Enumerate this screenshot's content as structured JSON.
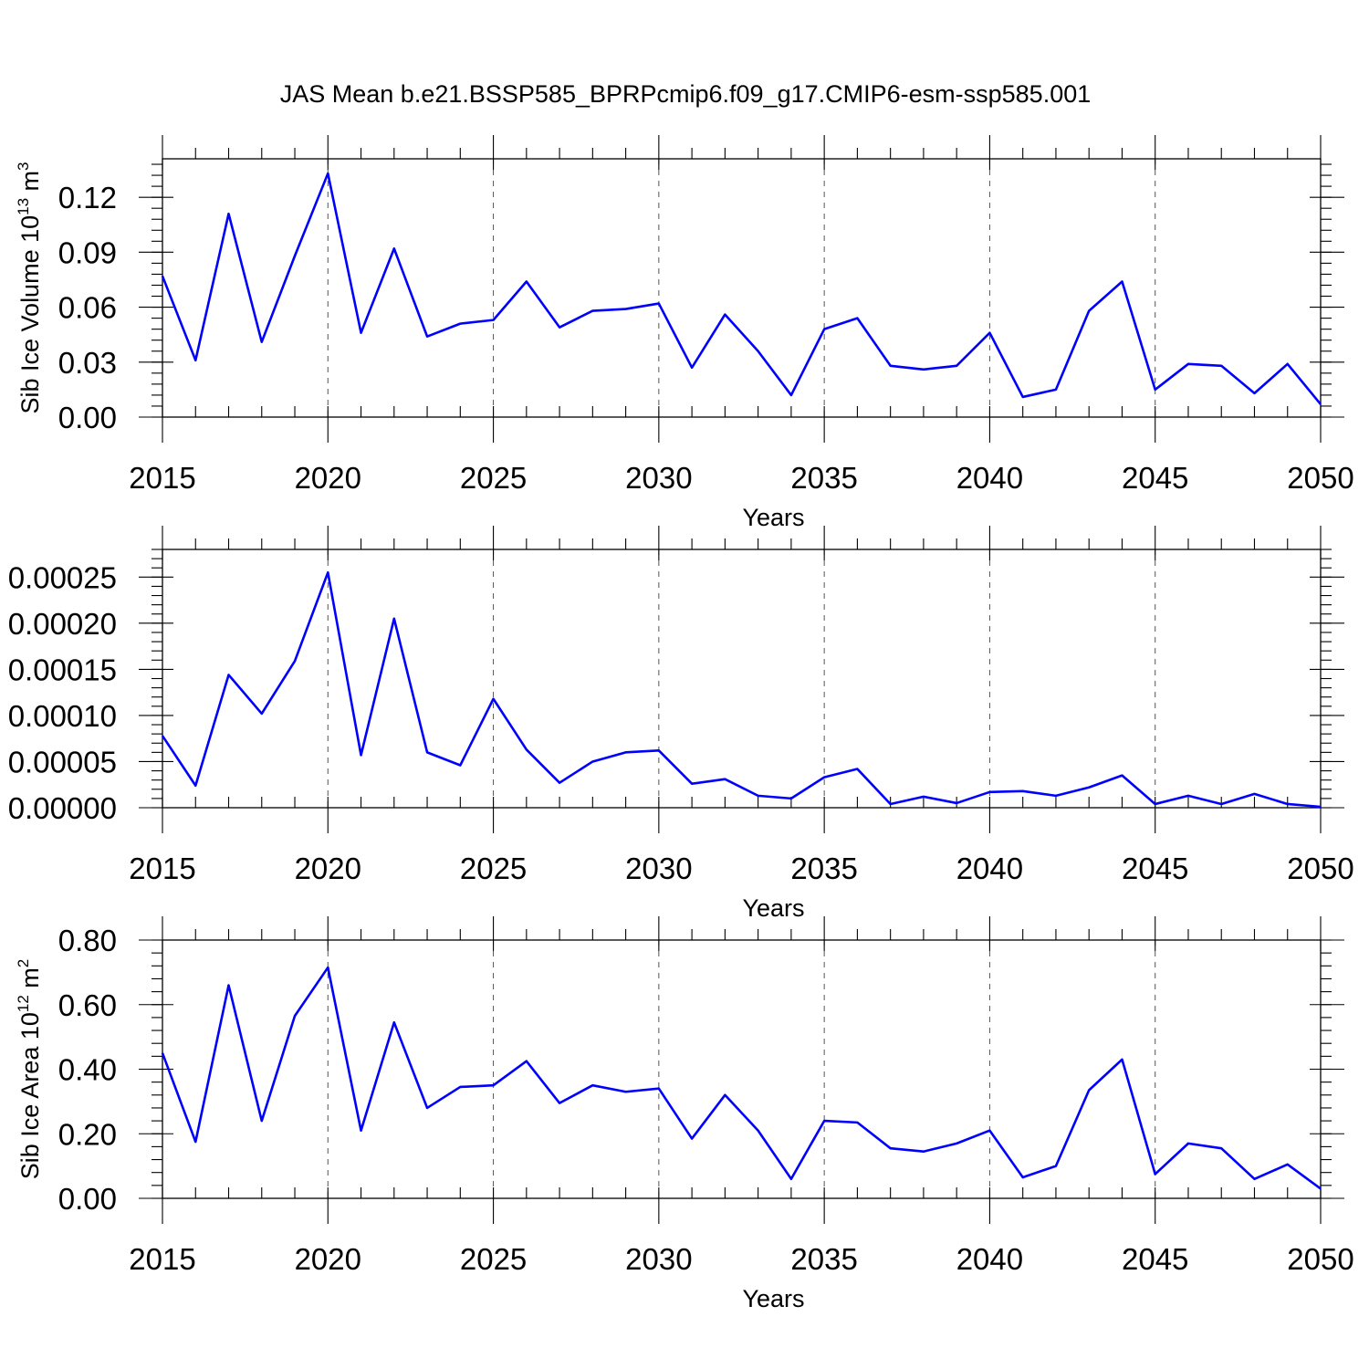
{
  "figure": {
    "title": "JAS Mean b.e21.BSSP585_BPRPcmip6.f09_g17.CMIP6-esm-ssp585.001"
  },
  "chart_data": [
    {
      "type": "line",
      "xlabel": "Years",
      "ylabel": "Sib Ice Volume 10",
      "ylabel_exponent": "13",
      "ylabel_unit": "m",
      "ylabel_unit_exponent": "3",
      "xlim": [
        2015,
        2050
      ],
      "ylim": [
        0.0,
        0.141
      ],
      "xticks": [
        2015,
        2020,
        2025,
        2030,
        2035,
        2040,
        2045,
        2050
      ],
      "xtick_labels": [
        "2015",
        "2020",
        "2025",
        "2030",
        "2035",
        "2040",
        "2045",
        "2050"
      ],
      "yticks": [
        0.0,
        0.03,
        0.06,
        0.09,
        0.12
      ],
      "ytick_labels": [
        "0.00",
        "0.03",
        "0.06",
        "0.09",
        "0.12"
      ],
      "grid": "vertical dashed at major x ticks",
      "line_color": "#0000ff",
      "x": [
        2015,
        2016,
        2017,
        2018,
        2019,
        2020,
        2021,
        2022,
        2023,
        2024,
        2025,
        2026,
        2027,
        2028,
        2029,
        2030,
        2031,
        2032,
        2033,
        2034,
        2035,
        2036,
        2037,
        2038,
        2039,
        2040,
        2041,
        2042,
        2043,
        2044,
        2045,
        2046,
        2047,
        2048,
        2049,
        2050
      ],
      "values": [
        0.077,
        0.031,
        0.111,
        0.041,
        0.088,
        0.133,
        0.046,
        0.092,
        0.044,
        0.051,
        0.053,
        0.074,
        0.049,
        0.058,
        0.059,
        0.062,
        0.027,
        0.056,
        0.036,
        0.012,
        0.048,
        0.054,
        0.028,
        0.026,
        0.028,
        0.046,
        0.011,
        0.015,
        0.058,
        0.074,
        0.015,
        0.029,
        0.028,
        0.013,
        0.029,
        0.007
      ]
    },
    {
      "type": "line",
      "xlabel": "Years",
      "ylabel": "",
      "xlim": [
        2015,
        2050
      ],
      "ylim": [
        0.0,
        0.00028
      ],
      "xticks": [
        2015,
        2020,
        2025,
        2030,
        2035,
        2040,
        2045,
        2050
      ],
      "xtick_labels": [
        "2015",
        "2020",
        "2025",
        "2030",
        "2035",
        "2040",
        "2045",
        "2050"
      ],
      "yticks": [
        0.0,
        5e-05,
        0.0001,
        0.00015,
        0.0002,
        0.00025
      ],
      "ytick_labels": [
        "0.00000",
        "0.00005",
        "0.00010",
        "0.00015",
        "0.00020",
        "0.00025"
      ],
      "grid": "vertical dashed at major x ticks",
      "line_color": "#0000ff",
      "x": [
        2015,
        2016,
        2017,
        2018,
        2019,
        2020,
        2021,
        2022,
        2023,
        2024,
        2025,
        2026,
        2027,
        2028,
        2029,
        2030,
        2031,
        2032,
        2033,
        2034,
        2035,
        2036,
        2037,
        2038,
        2039,
        2040,
        2041,
        2042,
        2043,
        2044,
        2045,
        2046,
        2047,
        2048,
        2049,
        2050
      ],
      "values": [
        7.8e-05,
        2.4e-05,
        0.000144,
        0.000102,
        0.000159,
        0.000255,
        5.7e-05,
        0.000205,
        6e-05,
        4.6e-05,
        0.000118,
        6.3e-05,
        2.7e-05,
        5e-05,
        6e-05,
        6.2e-05,
        2.6e-05,
        3.1e-05,
        1.3e-05,
        1e-05,
        3.3e-05,
        4.2e-05,
        4e-06,
        1.2e-05,
        5e-06,
        1.7e-05,
        1.8e-05,
        1.3e-05,
        2.2e-05,
        3.5e-05,
        4e-06,
        1.3e-05,
        4e-06,
        1.5e-05,
        4e-06,
        1e-06
      ]
    },
    {
      "type": "line",
      "xlabel": "Years",
      "ylabel": "Sib Ice Area 10",
      "ylabel_exponent": "12",
      "ylabel_unit": "m",
      "ylabel_unit_exponent": "2",
      "xlim": [
        2015,
        2050
      ],
      "ylim": [
        0.0,
        0.8
      ],
      "xticks": [
        2015,
        2020,
        2025,
        2030,
        2035,
        2040,
        2045,
        2050
      ],
      "xtick_labels": [
        "2015",
        "2020",
        "2025",
        "2030",
        "2035",
        "2040",
        "2045",
        "2050"
      ],
      "yticks": [
        0.0,
        0.2,
        0.4,
        0.6,
        0.8
      ],
      "ytick_labels": [
        "0.00",
        "0.20",
        "0.40",
        "0.60",
        "0.80"
      ],
      "grid": "vertical dashed at major x ticks",
      "line_color": "#0000ff",
      "x": [
        2015,
        2016,
        2017,
        2018,
        2019,
        2020,
        2021,
        2022,
        2023,
        2024,
        2025,
        2026,
        2027,
        2028,
        2029,
        2030,
        2031,
        2032,
        2033,
        2034,
        2035,
        2036,
        2037,
        2038,
        2039,
        2040,
        2041,
        2042,
        2043,
        2044,
        2045,
        2046,
        2047,
        2048,
        2049,
        2050
      ],
      "values": [
        0.45,
        0.175,
        0.66,
        0.24,
        0.565,
        0.715,
        0.21,
        0.545,
        0.28,
        0.345,
        0.35,
        0.425,
        0.295,
        0.35,
        0.33,
        0.34,
        0.185,
        0.32,
        0.21,
        0.06,
        0.24,
        0.235,
        0.155,
        0.145,
        0.17,
        0.21,
        0.065,
        0.1,
        0.335,
        0.43,
        0.075,
        0.17,
        0.155,
        0.06,
        0.105,
        0.03
      ]
    }
  ]
}
